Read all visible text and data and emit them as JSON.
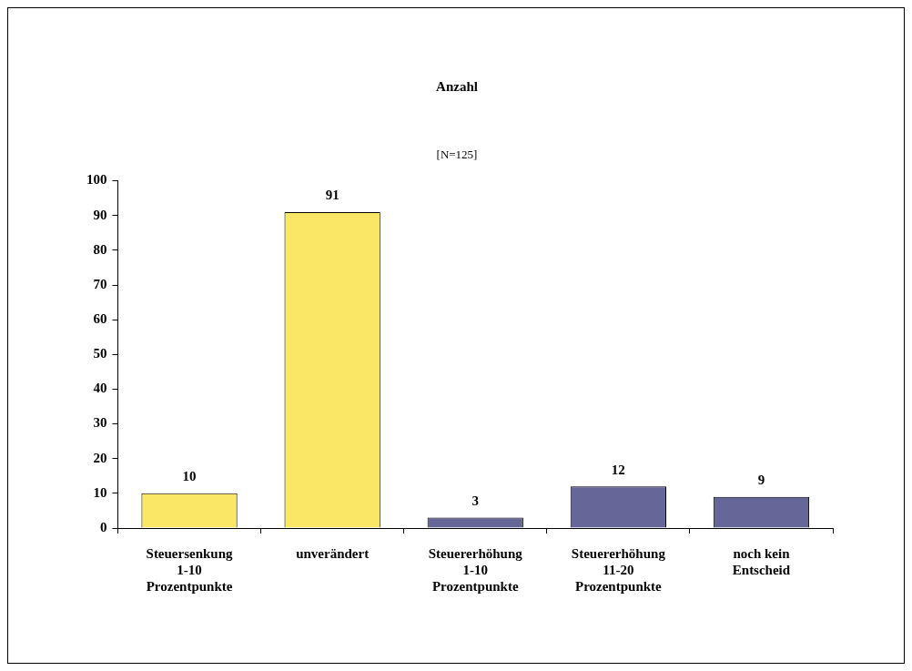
{
  "chart_data": {
    "type": "bar",
    "title": "Anzahl",
    "subtitle": "[N=125]",
    "categories": [
      "Steuersenkung 1-10 Prozentpunkte",
      "unverändert",
      "Steuererhöhung 1-10 Prozentpunkte",
      "Steuererhöhung 11-20 Prozentpunkte",
      "noch kein Entscheid"
    ],
    "values": [
      10,
      91,
      3,
      12,
      9
    ],
    "colors": [
      "#f9e765",
      "#f9e765",
      "#666699",
      "#666699",
      "#666699"
    ],
    "ylim": [
      0,
      100
    ],
    "yticks": [
      0,
      10,
      20,
      30,
      40,
      50,
      60,
      70,
      80,
      90,
      100
    ],
    "grid": false,
    "data_labels": true,
    "legend": false
  }
}
